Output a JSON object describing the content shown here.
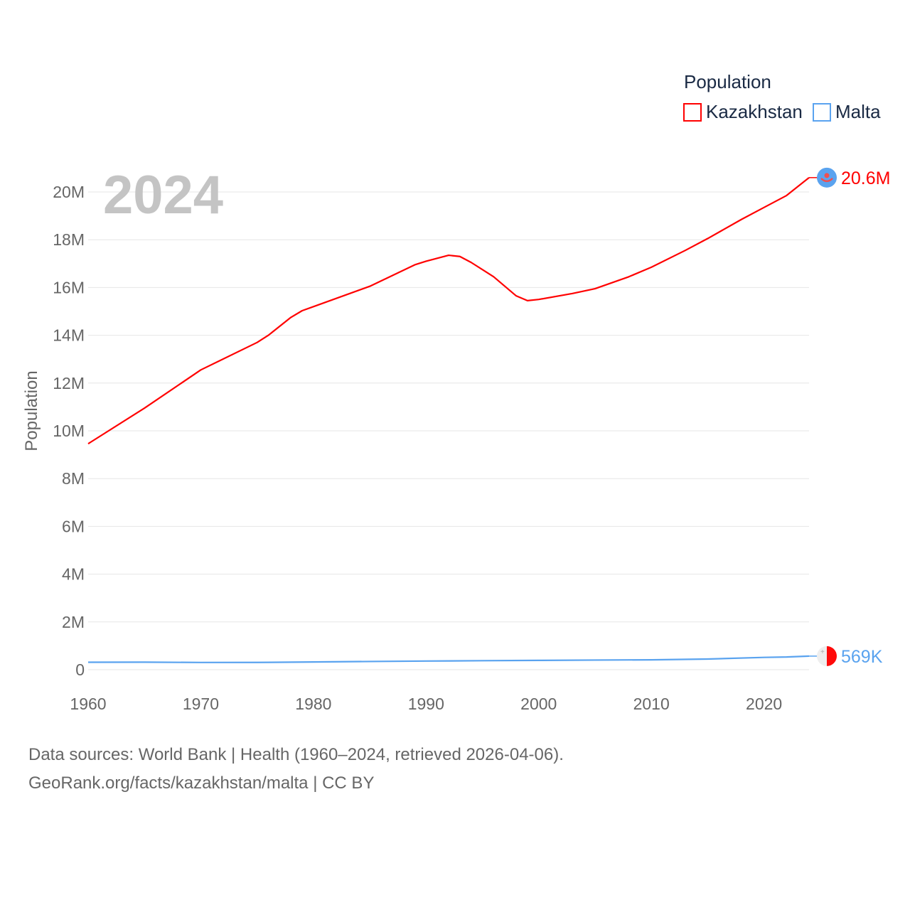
{
  "chart_data": {
    "type": "line",
    "title": "Population",
    "ylabel": "Population",
    "xlabel": "",
    "year_label": "2024",
    "xlim": [
      1960,
      2024
    ],
    "ylim": [
      0,
      20000000
    ],
    "x_ticks": [
      1960,
      1970,
      1980,
      1990,
      2000,
      2010,
      2020
    ],
    "x_tick_labels": [
      "1960",
      "1970",
      "1980",
      "1990",
      "2000",
      "2010",
      "2020"
    ],
    "y_ticks": [
      0,
      2000000,
      4000000,
      6000000,
      8000000,
      10000000,
      12000000,
      14000000,
      16000000,
      18000000,
      20000000
    ],
    "y_tick_labels": [
      "0",
      "2M",
      "4M",
      "6M",
      "8M",
      "10M",
      "12M",
      "14M",
      "16M",
      "18M",
      "20M"
    ],
    "grid": true,
    "legend": {
      "title": "Population",
      "placement": "top-right"
    },
    "series": [
      {
        "name": "Kazakhstan",
        "color": "#ff0000",
        "end_label": "20.6M",
        "flag_icon": "kazakhstan-flag",
        "x": [
          1960,
          1965,
          1970,
          1975,
          1976,
          1978,
          1979,
          1980,
          1985,
          1987,
          1989,
          1990,
          1992,
          1993,
          1994,
          1996,
          1998,
          1999,
          2000,
          2003,
          2005,
          2008,
          2010,
          2013,
          2015,
          2018,
          2020,
          2022,
          2024
        ],
        "values": [
          9460000,
          10950000,
          12550000,
          13700000,
          14000000,
          14750000,
          15030000,
          15200000,
          16050000,
          16500000,
          16950000,
          17100000,
          17350000,
          17300000,
          17050000,
          16450000,
          15650000,
          15450000,
          15500000,
          15750000,
          15950000,
          16450000,
          16850000,
          17550000,
          18050000,
          18850000,
          19350000,
          19850000,
          20600000
        ]
      },
      {
        "name": "Malta",
        "color": "#5aa3ef",
        "end_label": "569K",
        "flag_icon": "malta-flag",
        "x": [
          1960,
          1965,
          1970,
          1975,
          1980,
          1985,
          1990,
          1995,
          2000,
          2005,
          2010,
          2015,
          2020,
          2022,
          2024
        ],
        "values": [
          313000,
          316000,
          303000,
          305000,
          324000,
          344000,
          362000,
          377000,
          390000,
          403000,
          414000,
          446000,
          516000,
          531000,
          569000
        ]
      }
    ]
  },
  "footer": {
    "line1": "Data sources: World Bank | Health (1960–2024, retrieved 2026-04-06).",
    "line2": "GeoRank.org/facts/kazakhstan/malta | CC BY"
  }
}
